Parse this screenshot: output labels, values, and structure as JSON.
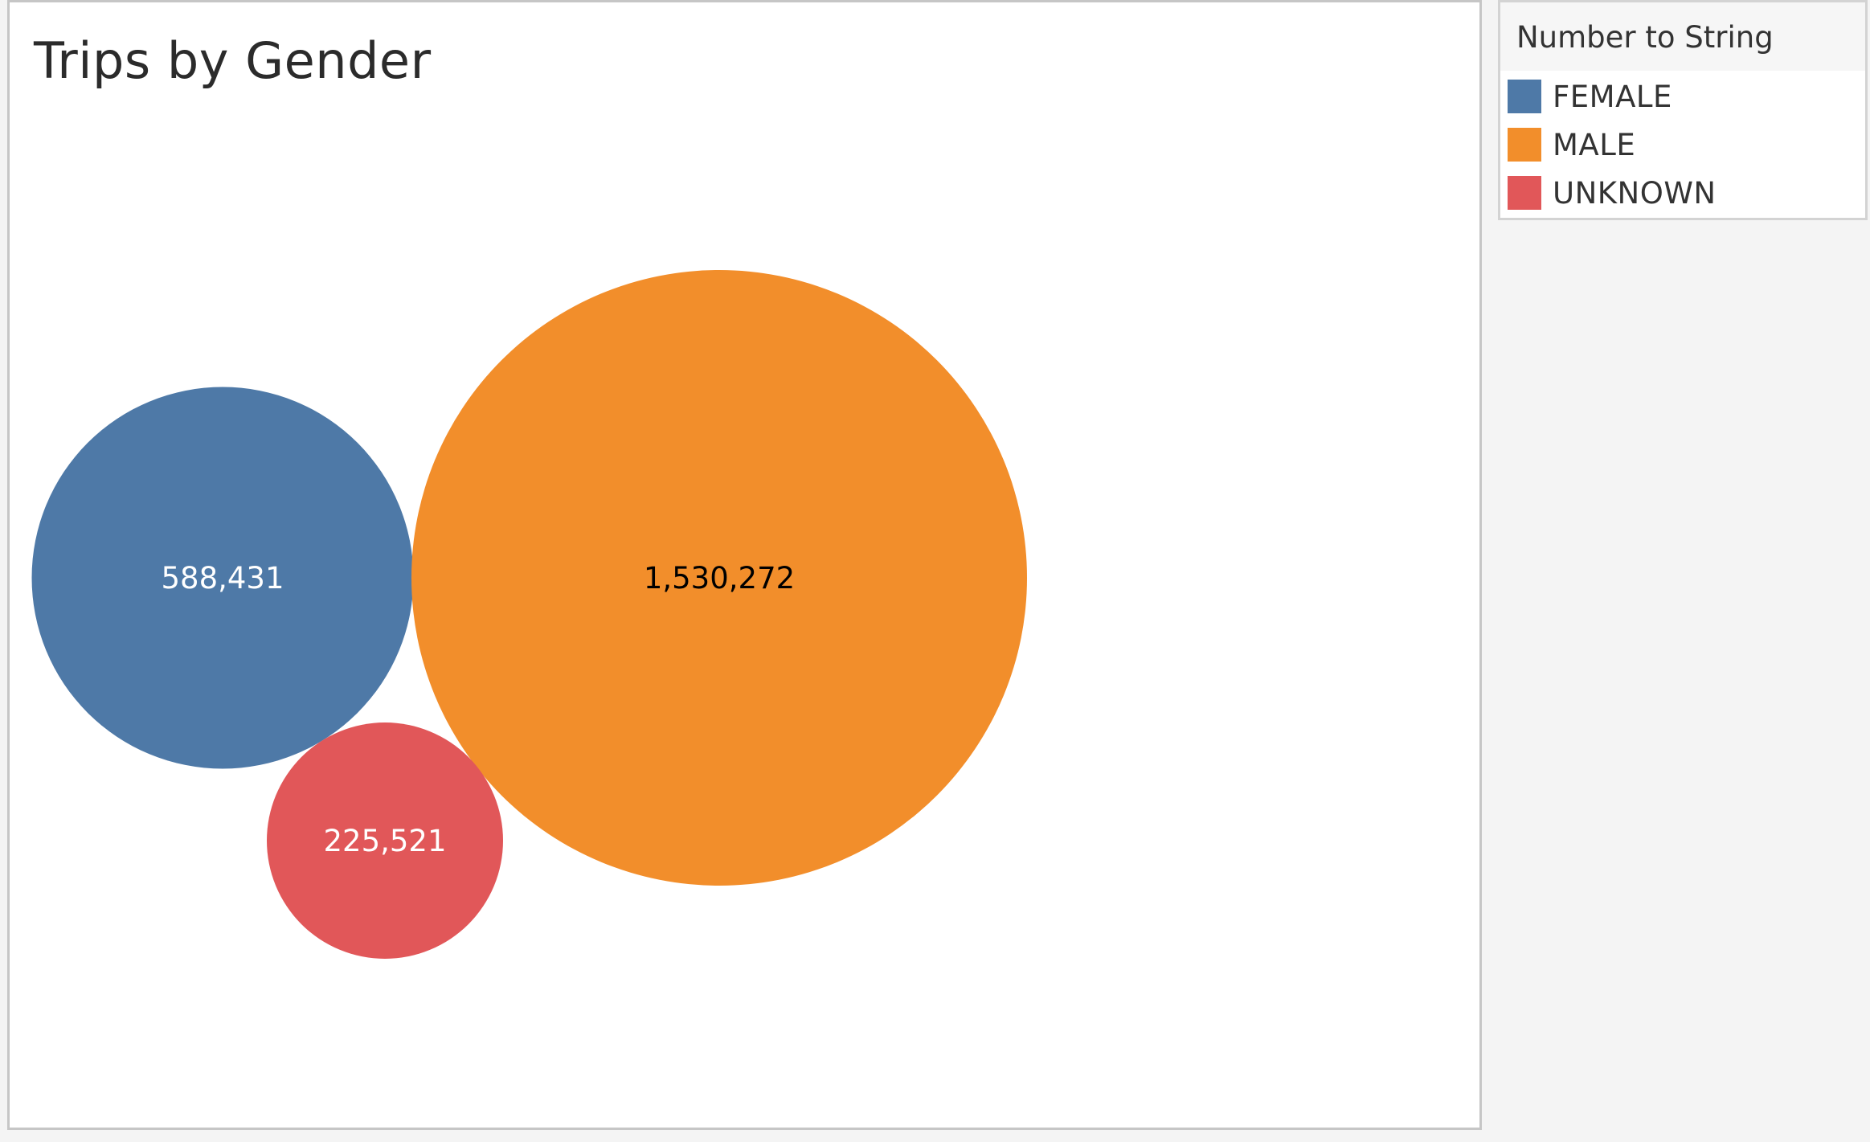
{
  "chart_data": {
    "type": "bubble",
    "title": "Trips by Gender",
    "legend_title": "Number to String",
    "legend_placement": "top-right",
    "series": [
      {
        "name": "FEMALE",
        "value": 588431,
        "label": "588,431",
        "color": "#4e79a7",
        "label_color": "#ffffff"
      },
      {
        "name": "MALE",
        "value": 1530272,
        "label": "1,530,272",
        "color": "#f28e2b",
        "label_color": "#000000"
      },
      {
        "name": "UNKNOWN",
        "value": 225521,
        "label": "225,521",
        "color": "#e15759",
        "label_color": "#ffffff"
      }
    ]
  }
}
